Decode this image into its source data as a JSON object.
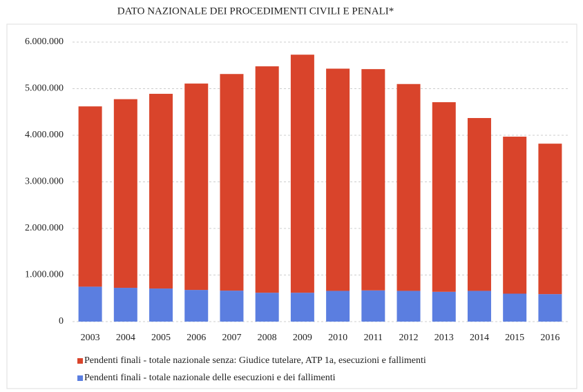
{
  "chart_data": {
    "type": "stacked_bar",
    "title": "DATO NAZIONALE DEI PROCEDIMENTI CIVILI E PENALI*",
    "categories": [
      "2003",
      "2004",
      "2005",
      "2006",
      "2007",
      "2008",
      "2009",
      "2010",
      "2011",
      "2012",
      "2013",
      "2014",
      "2015",
      "2016"
    ],
    "series": [
      {
        "name": "Pendenti finali - totale nazionale senza: Giudice tutelare, ATP 1a, esecuzioni e fallimenti",
        "color": "#d9442b",
        "values": [
          3870000,
          4050000,
          4180000,
          4430000,
          4650000,
          4860000,
          5110000,
          4770000,
          4750000,
          4440000,
          4070000,
          3710000,
          3370000,
          3230000
        ]
      },
      {
        "name": "Pendenti finali - totale nazionale delle esecuzioni e dei fallimenti",
        "color": "#5b7ee0",
        "values": [
          750000,
          725000,
          710000,
          680000,
          665000,
          620000,
          620000,
          660000,
          670000,
          660000,
          640000,
          660000,
          600000,
          590000
        ]
      }
    ],
    "ylim": [
      0,
      6000000
    ],
    "yticks": [
      0,
      {
        "value": 1000000,
        "label": "1.000.000"
      },
      {
        "value": 2000000,
        "label": "2.000.000"
      },
      {
        "value": 3000000,
        "label": "3.000.000"
      },
      {
        "value": 4000000,
        "label": "4.000.000"
      },
      {
        "value": 5000000,
        "label": "5.000.000"
      },
      {
        "value": 6000000,
        "label": "6.000.000"
      }
    ],
    "grid": true
  }
}
